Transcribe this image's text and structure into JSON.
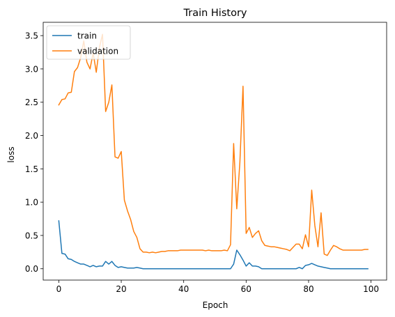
{
  "chart_data": {
    "type": "line",
    "title": "Train History",
    "xlabel": "Epoch",
    "ylabel": "loss",
    "xlim": [
      -5,
      105
    ],
    "ylim": [
      -0.17,
      3.7
    ],
    "xticks": [
      0,
      20,
      40,
      60,
      80,
      100
    ],
    "yticks": [
      0.0,
      0.5,
      1.0,
      1.5,
      2.0,
      2.5,
      3.0,
      3.5
    ],
    "xtick_labels": [
      "0",
      "20",
      "40",
      "60",
      "80",
      "100"
    ],
    "ytick_labels": [
      "0.0",
      "0.5",
      "1.0",
      "1.5",
      "2.0",
      "2.5",
      "3.0",
      "3.5"
    ],
    "grid": false,
    "legend_position": "upper-left",
    "series": [
      {
        "name": "train",
        "color": "#1f77b4",
        "x": [
          0,
          1,
          2,
          3,
          4,
          5,
          6,
          7,
          8,
          9,
          10,
          11,
          12,
          13,
          14,
          15,
          16,
          17,
          18,
          19,
          20,
          21,
          22,
          23,
          24,
          25,
          26,
          27,
          28,
          29,
          30,
          31,
          32,
          33,
          34,
          35,
          36,
          37,
          38,
          39,
          40,
          41,
          42,
          43,
          44,
          45,
          46,
          47,
          48,
          49,
          50,
          51,
          52,
          53,
          54,
          55,
          56,
          57,
          58,
          59,
          60,
          61,
          62,
          63,
          64,
          65,
          66,
          67,
          68,
          69,
          70,
          71,
          72,
          73,
          74,
          75,
          76,
          77,
          78,
          79,
          80,
          81,
          82,
          83,
          84,
          85,
          86,
          87,
          88,
          89,
          90,
          91,
          92,
          93,
          94,
          95,
          96,
          97,
          98,
          99
        ],
        "values": [
          0.72,
          0.23,
          0.22,
          0.15,
          0.14,
          0.11,
          0.09,
          0.07,
          0.07,
          0.05,
          0.03,
          0.05,
          0.03,
          0.04,
          0.04,
          0.11,
          0.07,
          0.11,
          0.05,
          0.02,
          0.03,
          0.02,
          0.01,
          0.01,
          0.01,
          0.02,
          0.01,
          0.0,
          0.0,
          0.0,
          0.0,
          0.0,
          0.0,
          0.0,
          0.0,
          0.0,
          0.0,
          0.0,
          0.0,
          0.0,
          0.0,
          0.0,
          0.0,
          0.0,
          0.0,
          0.0,
          0.0,
          0.0,
          0.0,
          0.0,
          0.0,
          0.0,
          0.0,
          0.0,
          0.0,
          0.0,
          0.07,
          0.28,
          0.21,
          0.13,
          0.04,
          0.09,
          0.04,
          0.04,
          0.03,
          0.0,
          0.0,
          0.0,
          0.0,
          0.0,
          0.0,
          0.0,
          0.0,
          0.0,
          0.0,
          0.0,
          0.0,
          0.02,
          0.0,
          0.05,
          0.06,
          0.08,
          0.06,
          0.04,
          0.03,
          0.02,
          0.01,
          0.0,
          0.0,
          0.0,
          0.0,
          0.0,
          0.0,
          0.0,
          0.0,
          0.0,
          0.0,
          0.0,
          0.0,
          0.0
        ]
      },
      {
        "name": "validation",
        "color": "#ff7f0e",
        "x": [
          0,
          1,
          2,
          3,
          4,
          5,
          6,
          7,
          8,
          9,
          10,
          11,
          12,
          13,
          14,
          15,
          16,
          17,
          18,
          19,
          20,
          21,
          22,
          23,
          24,
          25,
          26,
          27,
          28,
          29,
          30,
          31,
          32,
          33,
          34,
          35,
          36,
          37,
          38,
          39,
          40,
          41,
          42,
          43,
          44,
          45,
          46,
          47,
          48,
          49,
          50,
          51,
          52,
          53,
          54,
          55,
          56,
          57,
          58,
          59,
          60,
          61,
          62,
          63,
          64,
          65,
          66,
          67,
          68,
          69,
          70,
          71,
          72,
          73,
          74,
          75,
          76,
          77,
          78,
          79,
          80,
          81,
          82,
          83,
          84,
          85,
          86,
          87,
          88,
          89,
          90,
          91,
          92,
          93,
          94,
          95,
          96,
          97,
          98,
          99
        ],
        "values": [
          2.46,
          2.54,
          2.55,
          2.64,
          2.65,
          2.96,
          3.02,
          3.17,
          3.42,
          3.1,
          3.0,
          3.24,
          2.95,
          3.32,
          3.52,
          2.36,
          2.5,
          2.76,
          1.68,
          1.66,
          1.76,
          1.03,
          0.87,
          0.74,
          0.56,
          0.47,
          0.3,
          0.25,
          0.25,
          0.24,
          0.25,
          0.24,
          0.25,
          0.26,
          0.26,
          0.27,
          0.27,
          0.27,
          0.27,
          0.28,
          0.28,
          0.28,
          0.28,
          0.28,
          0.28,
          0.28,
          0.28,
          0.27,
          0.28,
          0.27,
          0.27,
          0.27,
          0.27,
          0.28,
          0.27,
          0.36,
          1.88,
          0.9,
          1.6,
          2.74,
          0.53,
          0.62,
          0.47,
          0.53,
          0.57,
          0.42,
          0.35,
          0.34,
          0.33,
          0.33,
          0.32,
          0.31,
          0.3,
          0.29,
          0.27,
          0.32,
          0.37,
          0.37,
          0.3,
          0.51,
          0.33,
          1.18,
          0.65,
          0.33,
          0.84,
          0.22,
          0.2,
          0.28,
          0.35,
          0.33,
          0.3,
          0.28,
          0.28,
          0.28,
          0.28,
          0.28,
          0.28,
          0.28,
          0.29,
          0.29
        ]
      }
    ]
  }
}
